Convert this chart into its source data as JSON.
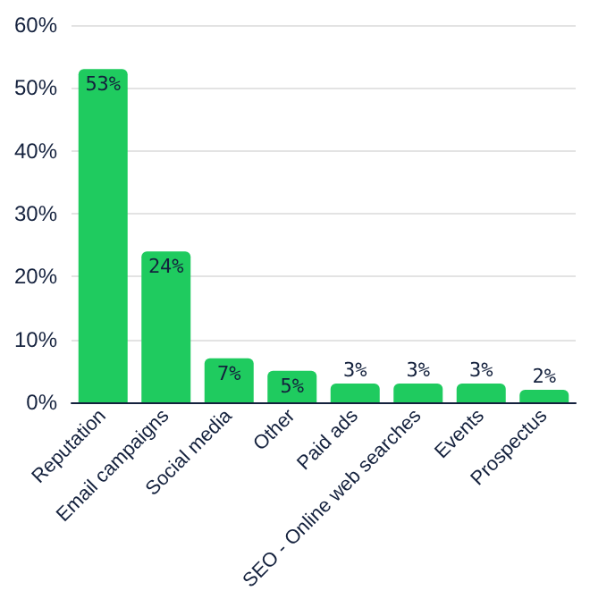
{
  "chart_data": {
    "type": "bar",
    "categories": [
      "Reputation",
      "Email campaigns",
      "Social media",
      "Other",
      "Paid ads",
      "SEO - Online web searches",
      "Events",
      "Prospectus"
    ],
    "values": [
      53,
      24,
      7,
      5,
      3,
      3,
      3,
      2
    ],
    "value_labels": [
      "53%",
      "24%",
      "7%",
      "5%",
      "3%",
      "3%",
      "3%",
      "2%"
    ],
    "color": "#1fcb5f",
    "ylim": [
      0,
      60
    ],
    "yticks": [
      {
        "value": 0,
        "label": "0%"
      },
      {
        "value": 10,
        "label": "10%"
      },
      {
        "value": 20,
        "label": "20%"
      },
      {
        "value": 30,
        "label": "30%"
      },
      {
        "value": 40,
        "label": "40%"
      },
      {
        "value": 50,
        "label": "50%"
      },
      {
        "value": 60,
        "label": "60%"
      }
    ],
    "grid": "y"
  }
}
